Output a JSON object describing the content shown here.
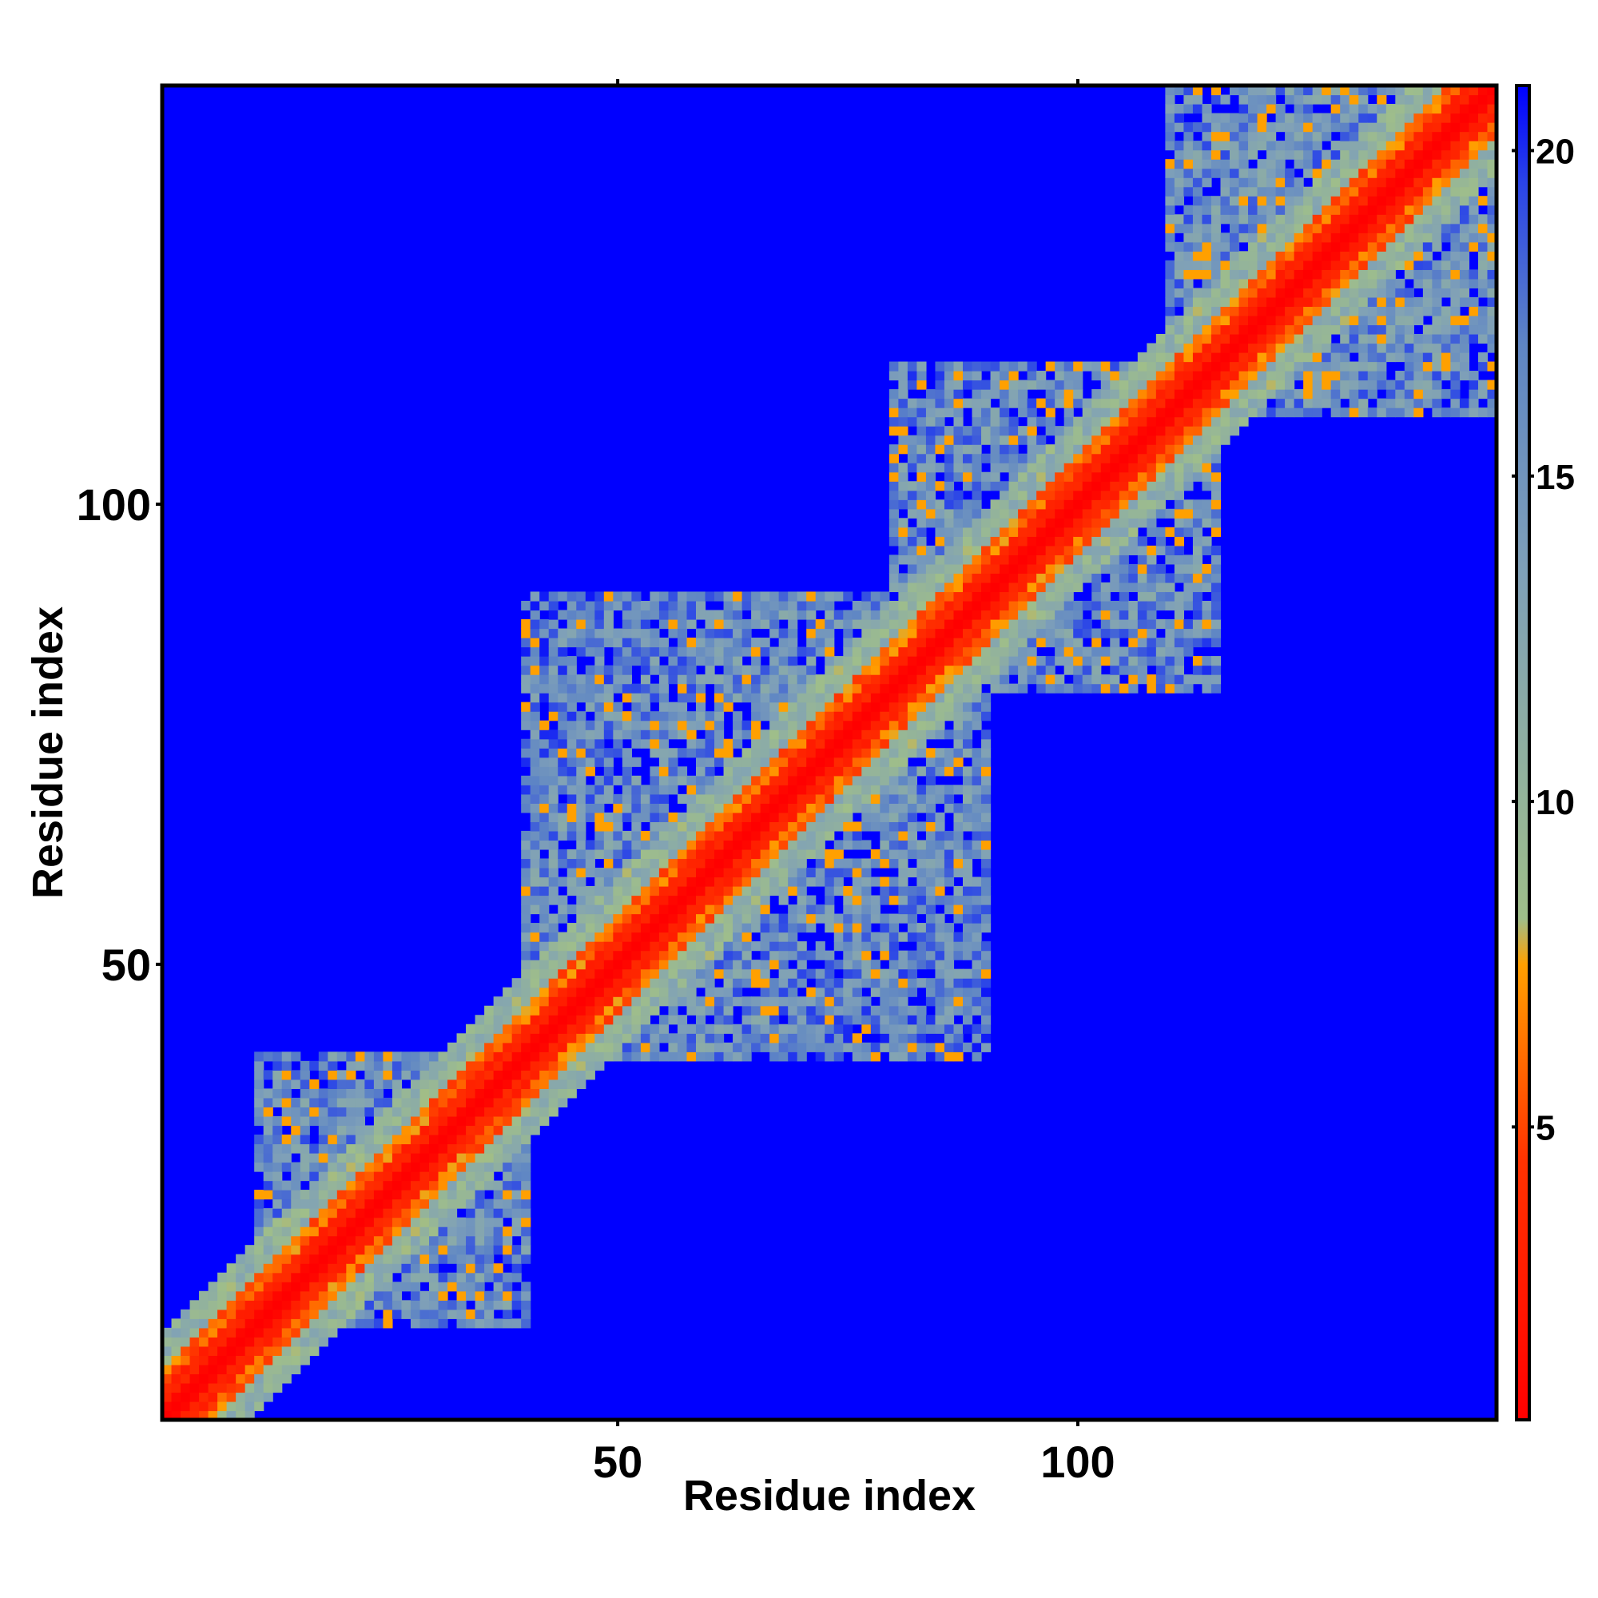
{
  "chart_data": {
    "type": "heatmap",
    "title": "",
    "xlabel": "Residue index",
    "ylabel": "Residue index",
    "n_residues": 145,
    "xlim": [
      1,
      145
    ],
    "ylim": [
      1,
      145
    ],
    "x_ticks": [
      50,
      100
    ],
    "y_ticks": [
      50,
      100
    ],
    "x_tick_labels": [
      "50",
      "100"
    ],
    "y_tick_labels": [
      "50",
      "100"
    ],
    "colorbar": {
      "range": [
        0.5,
        21.0
      ],
      "ticks": [
        5,
        10,
        15,
        20
      ],
      "tick_labels": [
        "5",
        "10",
        "15",
        "20"
      ],
      "stops": [
        {
          "value": 0.5,
          "color": "#ff0000"
        },
        {
          "value": 4.5,
          "color": "#ff3300"
        },
        {
          "value": 7.5,
          "color": "#ffa000"
        },
        {
          "value": 8.2,
          "color": "#9fbe8a"
        },
        {
          "value": 13.5,
          "color": "#7fa0b8"
        },
        {
          "value": 17.0,
          "color": "#5f86c4"
        },
        {
          "value": 19.5,
          "color": "#2a44e8"
        },
        {
          "value": 21.0,
          "color": "#0000ff"
        }
      ]
    },
    "background_value": 21.0,
    "contact_regions": [
      {
        "i_range": [
          1,
          10
        ],
        "j_range": [
          1,
          10
        ],
        "min_value": 6.0
      },
      {
        "i_range": [
          11,
          40
        ],
        "j_range": [
          11,
          40
        ],
        "min_value": 7.5
      },
      {
        "i_range": [
          40,
          90
        ],
        "j_range": [
          40,
          90
        ],
        "min_value": 7.5
      },
      {
        "i_range": [
          80,
          115
        ],
        "j_range": [
          80,
          115
        ],
        "min_value": 7.5
      },
      {
        "i_range": [
          110,
          145
        ],
        "j_range": [
          110,
          145
        ],
        "min_value": 7.5
      },
      {
        "i_range": [
          50,
          75
        ],
        "j_range": [
          60,
          85
        ],
        "min_value": 8.5
      },
      {
        "i_range": [
          80,
          105
        ],
        "j_range": [
          90,
          115
        ],
        "min_value": 8.5
      }
    ]
  }
}
